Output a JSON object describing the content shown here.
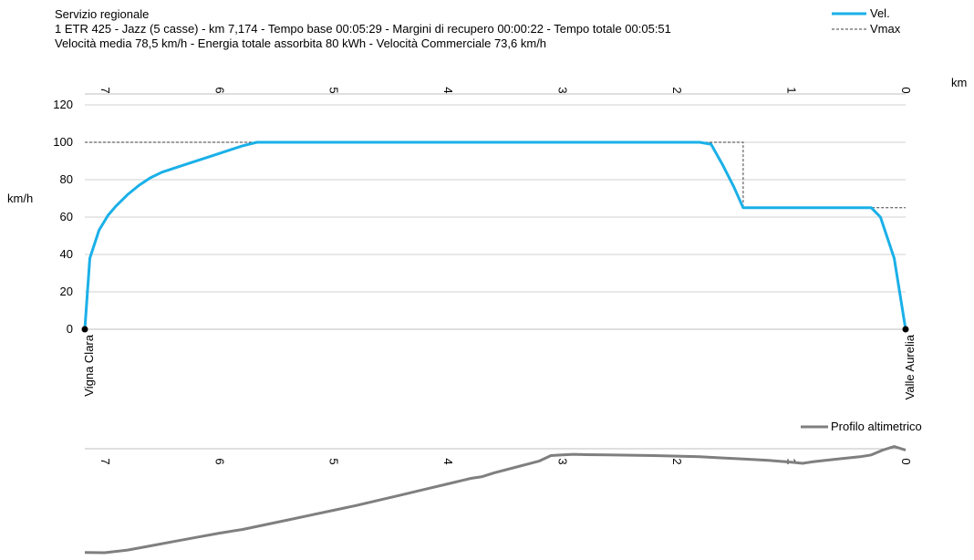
{
  "header": {
    "line1": "Servizio regionale",
    "line2": "1 ETR 425 - Jazz (5 casse)  -  km 7,174  -  Tempo base 00:05:29  -  Margini di recupero 00:00:22  -  Tempo totale 00:05:51",
    "line3": "Velocità media 78,5 km/h  -  Energia totale assorbita 80 kWh  -  Velocità Commerciale 73,6 km/h"
  },
  "colors": {
    "speed": "#1ab0e8",
    "vmax": "#404040",
    "profile": "#7f7f7f",
    "grid": "#d0d0d0"
  },
  "chart_data": [
    {
      "type": "line",
      "xlabel": "km",
      "ylabel": "km/h",
      "ylim": [
        0,
        120
      ],
      "yticks": [
        0,
        20,
        40,
        60,
        80,
        100,
        120
      ],
      "xlim": [
        7.174,
        0
      ],
      "xticks": [
        7,
        6,
        5,
        4,
        3,
        2,
        1,
        0
      ],
      "legend_position": "top-right",
      "grid": true,
      "stations": [
        {
          "name": "Vigna Clara",
          "km": 7.174
        },
        {
          "name": "Valle Aurelia",
          "km": 0
        }
      ],
      "series": [
        {
          "name": "Vel.",
          "x": [
            7.174,
            7.13,
            7.05,
            6.97,
            6.9,
            6.8,
            6.7,
            6.6,
            6.5,
            6.3,
            6.1,
            5.9,
            5.8,
            5.67,
            5.0,
            4.0,
            3.0,
            2.2,
            1.8,
            1.7,
            1.6,
            1.5,
            1.42,
            1.0,
            0.5,
            0.3,
            0.22,
            0.1,
            0.0
          ],
          "y": [
            0,
            38,
            53,
            61,
            66,
            72,
            77,
            81,
            84,
            88,
            92,
            96,
            98,
            100,
            100,
            100,
            100,
            100,
            100,
            99,
            88,
            76,
            65,
            65,
            65,
            65,
            60,
            38,
            0
          ]
        },
        {
          "name": "Vmax",
          "x": [
            7.174,
            1.42,
            1.42,
            0.0
          ],
          "y": [
            100,
            100,
            65,
            65
          ]
        }
      ]
    },
    {
      "type": "line",
      "xlim": [
        7.174,
        0
      ],
      "xticks": [
        7,
        6,
        5,
        4,
        3,
        2,
        1,
        0
      ],
      "legend_position": "top-right",
      "series": [
        {
          "name": "Profilo altimetrico",
          "x": [
            7.174,
            7.0,
            6.8,
            6.6,
            6.4,
            6.2,
            6.0,
            5.8,
            5.6,
            5.4,
            5.2,
            5.0,
            4.8,
            4.6,
            4.4,
            4.2,
            4.0,
            3.8,
            3.7,
            3.6,
            3.4,
            3.2,
            3.1,
            3.0,
            2.9,
            2.8,
            2.6,
            2.4,
            2.2,
            2.0,
            1.8,
            1.6,
            1.4,
            1.2,
            1.0,
            0.9,
            0.8,
            0.6,
            0.4,
            0.3,
            0.2,
            0.1,
            0.0
          ],
          "y": [
            4.0,
            3.8,
            6.0,
            9.5,
            13.0,
            16.5,
            20.0,
            23.0,
            27.0,
            31.0,
            35.0,
            39.0,
            43.0,
            47.5,
            52.0,
            56.5,
            61.0,
            65.5,
            67.0,
            70.0,
            75.0,
            80.0,
            84.5,
            85.0,
            85.5,
            85.2,
            85.0,
            84.8,
            84.5,
            84.0,
            83.5,
            82.5,
            81.5,
            80.5,
            79.0,
            78.0,
            79.5,
            81.5,
            83.5,
            85.0,
            89.0,
            92.0,
            89.0
          ]
        }
      ]
    }
  ]
}
